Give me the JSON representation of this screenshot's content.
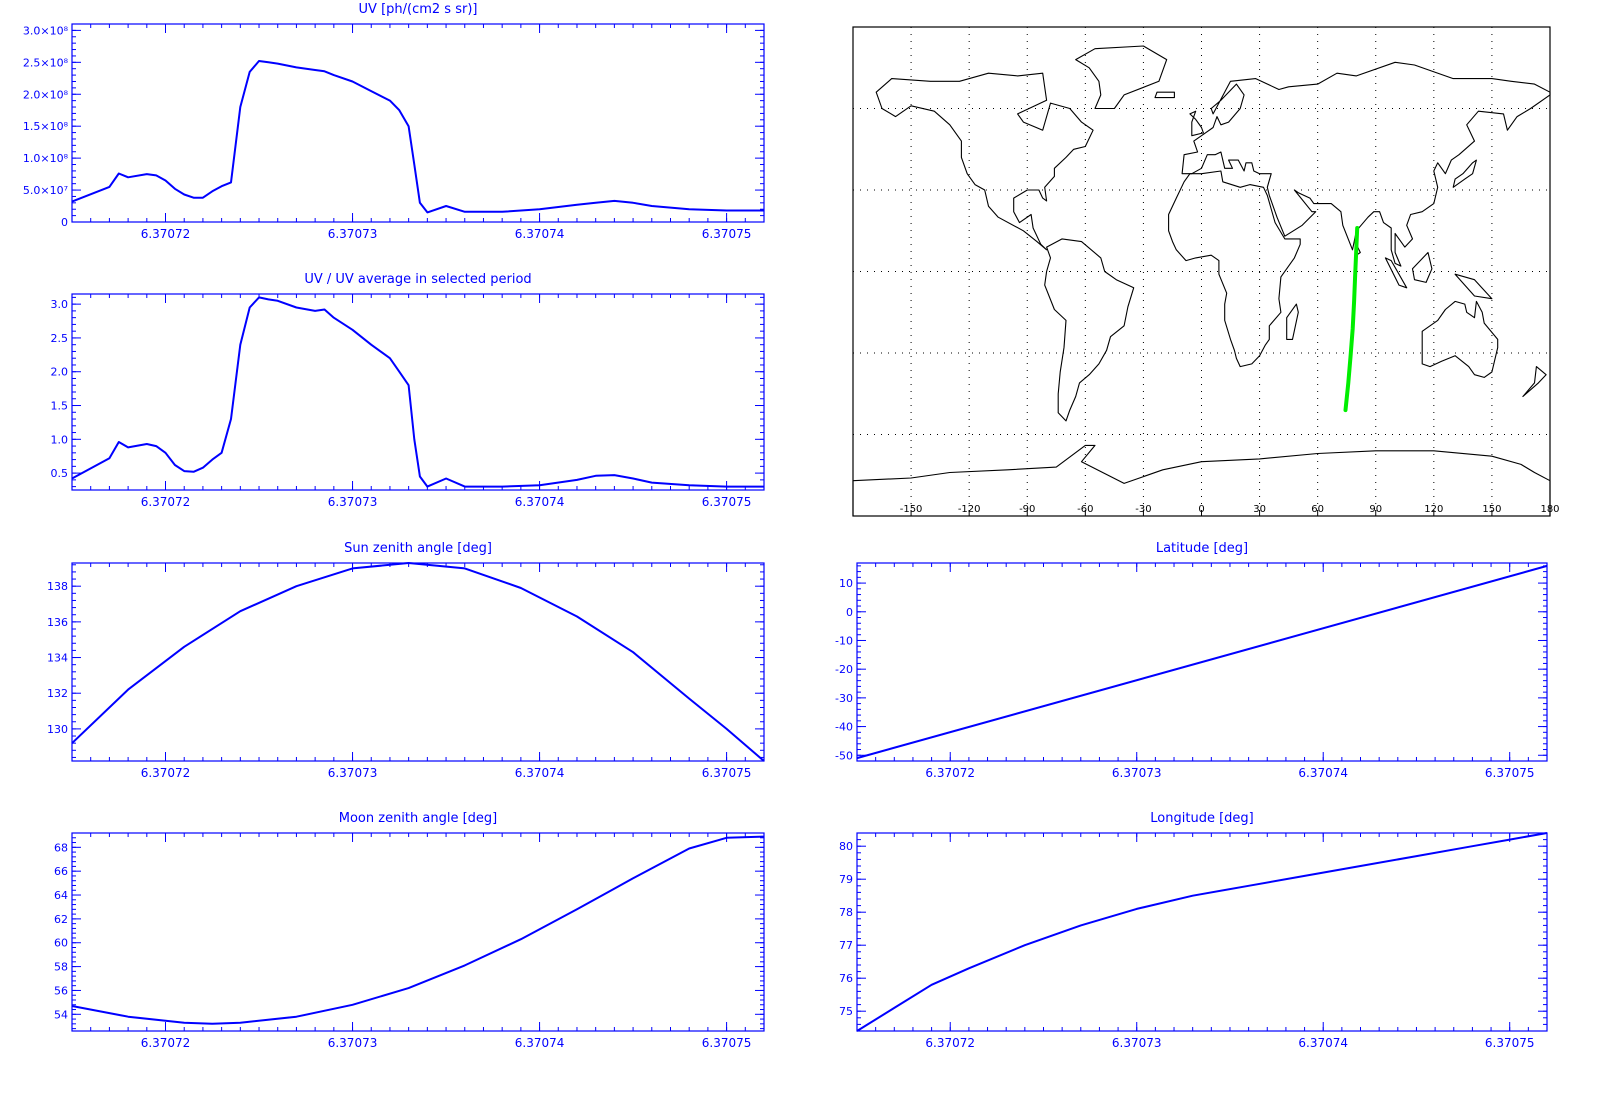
{
  "colors": {
    "axis": "#0000ff",
    "line": "#0000ff",
    "map_frame": "#000000",
    "coast": "#000000",
    "track": "#00ee00"
  },
  "chart_data": [
    {
      "id": "uv",
      "type": "line",
      "title": "UV [ph/(cm2 s sr)]",
      "x_tick_labels": [
        "6.37072",
        "6.37073",
        "6.37074",
        "6.37075"
      ],
      "x_ticks": [
        6.37072,
        6.37073,
        6.37074,
        6.37075
      ],
      "xlim": [
        6.370715,
        6.370752
      ],
      "ylim": [
        0,
        310000000.0
      ],
      "y_ticks": [
        0,
        50000000.0,
        100000000.0,
        150000000.0,
        200000000.0,
        250000000.0,
        300000000.0
      ],
      "y_tick_labels": [
        "0",
        "5.0×10⁷",
        "1.0×10⁸",
        "1.5×10⁸",
        "2.0×10⁸",
        "2.5×10⁸",
        "3.0×10⁸"
      ],
      "x": [
        6.370715,
        6.370717,
        6.3707175,
        6.370718,
        6.370719,
        6.3707195,
        6.37072,
        6.3707205,
        6.370721,
        6.3707215,
        6.370722,
        6.3707225,
        6.370723,
        6.3707235,
        6.370724,
        6.3707245,
        6.370725,
        6.3707255,
        6.370726,
        6.370727,
        6.370728,
        6.3707285,
        6.370729,
        6.37073,
        6.370731,
        6.370732,
        6.3707325,
        6.370733,
        6.3707333,
        6.3707336,
        6.370734,
        6.370735,
        6.370736,
        6.370737,
        6.370738,
        6.37074,
        6.370742,
        6.370743,
        6.370744,
        6.370745,
        6.370746,
        6.370748,
        6.37075,
        6.370752
      ],
      "y": [
        32000000.0,
        55000000.0,
        76000000.0,
        70000000.0,
        75000000.0,
        73000000.0,
        65000000.0,
        52000000.0,
        43000000.0,
        38000000.0,
        38000000.0,
        48000000.0,
        56000000.0,
        62000000.0,
        180000000.0,
        235000000.0,
        252000000.0,
        250000000.0,
        248000000.0,
        242000000.0,
        238000000.0,
        236000000.0,
        230000000.0,
        220000000.0,
        205000000.0,
        190000000.0,
        175000000.0,
        150000000.0,
        90000000.0,
        30000000.0,
        15000000.0,
        25000000.0,
        16000000.0,
        16000000.0,
        16000000.0,
        20000000.0,
        27000000.0,
        30000000.0,
        33000000.0,
        30000000.0,
        25000000.0,
        20000000.0,
        18000000.0,
        18000000.0
      ]
    },
    {
      "id": "uvratio",
      "type": "line",
      "title": "UV / UV average in selected period",
      "x_tick_labels": [
        "6.37072",
        "6.37073",
        "6.37074",
        "6.37075"
      ],
      "x_ticks": [
        6.37072,
        6.37073,
        6.37074,
        6.37075
      ],
      "xlim": [
        6.370715,
        6.370752
      ],
      "ylim": [
        0.25,
        3.15
      ],
      "y_ticks": [
        0.5,
        1.0,
        1.5,
        2.0,
        2.5,
        3.0
      ],
      "y_tick_labels": [
        "0.5",
        "1.0",
        "1.5",
        "2.0",
        "2.5",
        "3.0"
      ],
      "x": [
        6.370715,
        6.370717,
        6.3707175,
        6.370718,
        6.370719,
        6.3707195,
        6.37072,
        6.3707205,
        6.370721,
        6.3707215,
        6.370722,
        6.3707225,
        6.370723,
        6.3707235,
        6.370724,
        6.3707245,
        6.370725,
        6.3707255,
        6.370726,
        6.370727,
        6.370728,
        6.3707285,
        6.370729,
        6.37073,
        6.370731,
        6.370732,
        6.3707325,
        6.370733,
        6.3707333,
        6.3707336,
        6.370734,
        6.370735,
        6.370736,
        6.370737,
        6.370738,
        6.37074,
        6.370742,
        6.370743,
        6.370744,
        6.370745,
        6.370746,
        6.370748,
        6.37075,
        6.370752
      ],
      "y": [
        0.42,
        0.72,
        0.96,
        0.88,
        0.93,
        0.9,
        0.8,
        0.62,
        0.53,
        0.52,
        0.58,
        0.7,
        0.8,
        1.3,
        2.4,
        2.95,
        3.1,
        3.07,
        3.05,
        2.95,
        2.9,
        2.92,
        2.8,
        2.62,
        2.4,
        2.2,
        2.0,
        1.8,
        1.0,
        0.45,
        0.3,
        0.42,
        0.3,
        0.3,
        0.3,
        0.32,
        0.4,
        0.46,
        0.47,
        0.42,
        0.36,
        0.32,
        0.3,
        0.3
      ]
    },
    {
      "id": "sza",
      "type": "line",
      "title": "Sun zenith angle [deg]",
      "x_tick_labels": [
        "6.37072",
        "6.37073",
        "6.37074",
        "6.37075"
      ],
      "x_ticks": [
        6.37072,
        6.37073,
        6.37074,
        6.37075
      ],
      "xlim": [
        6.370715,
        6.370752
      ],
      "ylim": [
        128.2,
        139.3
      ],
      "y_ticks": [
        130,
        132,
        134,
        136,
        138
      ],
      "y_tick_labels": [
        "130",
        "132",
        "134",
        "136",
        "138"
      ],
      "x": [
        6.370715,
        6.370718,
        6.370721,
        6.370724,
        6.370727,
        6.37073,
        6.370733,
        6.370736,
        6.370739,
        6.370742,
        6.370745,
        6.370748,
        6.37075,
        6.370752
      ],
      "y": [
        129.2,
        132.2,
        134.6,
        136.6,
        138.0,
        139.0,
        139.3,
        139.0,
        137.9,
        136.3,
        134.3,
        131.7,
        130.0,
        128.2
      ]
    },
    {
      "id": "lat",
      "type": "line",
      "title": "Latitude [deg]",
      "x_tick_labels": [
        "6.37072",
        "6.37073",
        "6.37074",
        "6.37075"
      ],
      "x_ticks": [
        6.37072,
        6.37073,
        6.37074,
        6.37075
      ],
      "xlim": [
        6.370715,
        6.370752
      ],
      "ylim": [
        -52,
        17
      ],
      "y_ticks": [
        -50,
        -40,
        -30,
        -20,
        -10,
        0,
        10
      ],
      "y_tick_labels": [
        "-50",
        "-40",
        "-30",
        "-20",
        "-10",
        "0",
        "10"
      ],
      "x": [
        6.370715,
        6.370752
      ],
      "y": [
        -51,
        16
      ]
    },
    {
      "id": "mza",
      "type": "line",
      "title": "Moon zenith angle [deg]",
      "x_tick_labels": [
        "6.37072",
        "6.37073",
        "6.37074",
        "6.37075"
      ],
      "x_ticks": [
        6.37072,
        6.37073,
        6.37074,
        6.37075
      ],
      "xlim": [
        6.370715,
        6.370752
      ],
      "ylim": [
        52.6,
        69.2
      ],
      "y_ticks": [
        54,
        56,
        58,
        60,
        62,
        64,
        66,
        68
      ],
      "y_tick_labels": [
        "54",
        "56",
        "58",
        "60",
        "62",
        "64",
        "66",
        "68"
      ],
      "x": [
        6.370715,
        6.370718,
        6.370721,
        6.3707225,
        6.370724,
        6.370727,
        6.37073,
        6.370733,
        6.370736,
        6.370739,
        6.370742,
        6.370745,
        6.370748,
        6.37075,
        6.370752
      ],
      "y": [
        54.7,
        53.8,
        53.3,
        53.2,
        53.3,
        53.8,
        54.8,
        56.2,
        58.1,
        60.3,
        62.8,
        65.4,
        67.9,
        68.8,
        68.9
      ]
    },
    {
      "id": "lon",
      "type": "line",
      "title": "Longitude [deg]",
      "x_tick_labels": [
        "6.37072",
        "6.37073",
        "6.37074",
        "6.37075"
      ],
      "x_ticks": [
        6.37072,
        6.37073,
        6.37074,
        6.37075
      ],
      "xlim": [
        6.370715,
        6.370752
      ],
      "ylim": [
        74.4,
        80.4
      ],
      "y_ticks": [
        75,
        76,
        77,
        78,
        79,
        80
      ],
      "y_tick_labels": [
        "75",
        "76",
        "77",
        "78",
        "79",
        "80"
      ],
      "x": [
        6.370715,
        6.370717,
        6.370719,
        6.370721,
        6.370724,
        6.370727,
        6.37073,
        6.370733,
        6.370736,
        6.370739,
        6.370742,
        6.370745,
        6.370748,
        6.37075,
        6.370752
      ],
      "y": [
        74.4,
        75.1,
        75.8,
        76.3,
        77.0,
        77.6,
        78.1,
        78.5,
        78.8,
        79.1,
        79.4,
        79.7,
        80.0,
        80.2,
        80.4
      ]
    }
  ],
  "map": {
    "x_tick_labels": [
      "-150",
      "-120",
      "-90",
      "-60",
      "-30",
      "0",
      "30",
      "60",
      "90",
      "120",
      "150",
      "180"
    ],
    "x_ticks": [
      -150,
      -120,
      -90,
      -60,
      -30,
      0,
      30,
      60,
      90,
      120,
      150,
      180
    ],
    "lon_range": [
      -180,
      180
    ],
    "lat_range": [
      -90,
      90
    ],
    "grid_lats": [
      -60,
      -30,
      0,
      30,
      60
    ],
    "grid_lons": [
      -150,
      -120,
      -90,
      -60,
      -30,
      0,
      30,
      60,
      90,
      120,
      150
    ],
    "track_lon": [
      74.4,
      75.8,
      77.0,
      78.1,
      78.8,
      79.4,
      80.0,
      80.4
    ],
    "track_lat": [
      -51,
      -41,
      -31,
      -21,
      -11,
      -1,
      9,
      16
    ]
  }
}
